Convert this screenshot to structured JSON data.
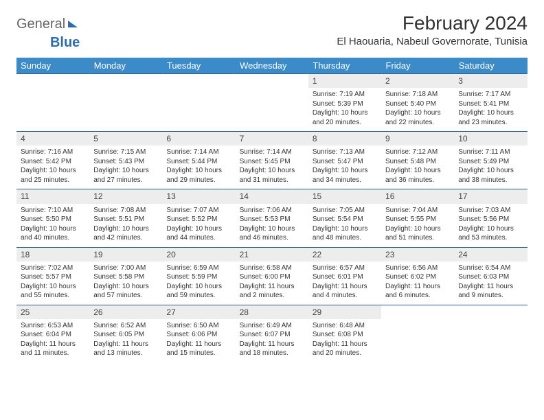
{
  "logo": {
    "part1": "General",
    "part2": "Blue"
  },
  "title": "February 2024",
  "location": "El Haouaria, Nabeul Governorate, Tunisia",
  "colors": {
    "header_bg": "#3b8bc9",
    "header_text": "#ffffff",
    "daynum_bg": "#ededed",
    "row_border": "#2a5a8a",
    "logo_blue": "#2a6db5"
  },
  "typography": {
    "title_fontsize": 28,
    "location_fontsize": 15,
    "header_fontsize": 13,
    "cell_fontsize": 10
  },
  "weekdays": [
    "Sunday",
    "Monday",
    "Tuesday",
    "Wednesday",
    "Thursday",
    "Friday",
    "Saturday"
  ],
  "weeks": [
    [
      {
        "n": "",
        "sr": "",
        "ss": "",
        "dl": ""
      },
      {
        "n": "",
        "sr": "",
        "ss": "",
        "dl": ""
      },
      {
        "n": "",
        "sr": "",
        "ss": "",
        "dl": ""
      },
      {
        "n": "",
        "sr": "",
        "ss": "",
        "dl": ""
      },
      {
        "n": "1",
        "sr": "Sunrise: 7:19 AM",
        "ss": "Sunset: 5:39 PM",
        "dl": "Daylight: 10 hours and 20 minutes."
      },
      {
        "n": "2",
        "sr": "Sunrise: 7:18 AM",
        "ss": "Sunset: 5:40 PM",
        "dl": "Daylight: 10 hours and 22 minutes."
      },
      {
        "n": "3",
        "sr": "Sunrise: 7:17 AM",
        "ss": "Sunset: 5:41 PM",
        "dl": "Daylight: 10 hours and 23 minutes."
      }
    ],
    [
      {
        "n": "4",
        "sr": "Sunrise: 7:16 AM",
        "ss": "Sunset: 5:42 PM",
        "dl": "Daylight: 10 hours and 25 minutes."
      },
      {
        "n": "5",
        "sr": "Sunrise: 7:15 AM",
        "ss": "Sunset: 5:43 PM",
        "dl": "Daylight: 10 hours and 27 minutes."
      },
      {
        "n": "6",
        "sr": "Sunrise: 7:14 AM",
        "ss": "Sunset: 5:44 PM",
        "dl": "Daylight: 10 hours and 29 minutes."
      },
      {
        "n": "7",
        "sr": "Sunrise: 7:14 AM",
        "ss": "Sunset: 5:45 PM",
        "dl": "Daylight: 10 hours and 31 minutes."
      },
      {
        "n": "8",
        "sr": "Sunrise: 7:13 AM",
        "ss": "Sunset: 5:47 PM",
        "dl": "Daylight: 10 hours and 34 minutes."
      },
      {
        "n": "9",
        "sr": "Sunrise: 7:12 AM",
        "ss": "Sunset: 5:48 PM",
        "dl": "Daylight: 10 hours and 36 minutes."
      },
      {
        "n": "10",
        "sr": "Sunrise: 7:11 AM",
        "ss": "Sunset: 5:49 PM",
        "dl": "Daylight: 10 hours and 38 minutes."
      }
    ],
    [
      {
        "n": "11",
        "sr": "Sunrise: 7:10 AM",
        "ss": "Sunset: 5:50 PM",
        "dl": "Daylight: 10 hours and 40 minutes."
      },
      {
        "n": "12",
        "sr": "Sunrise: 7:08 AM",
        "ss": "Sunset: 5:51 PM",
        "dl": "Daylight: 10 hours and 42 minutes."
      },
      {
        "n": "13",
        "sr": "Sunrise: 7:07 AM",
        "ss": "Sunset: 5:52 PM",
        "dl": "Daylight: 10 hours and 44 minutes."
      },
      {
        "n": "14",
        "sr": "Sunrise: 7:06 AM",
        "ss": "Sunset: 5:53 PM",
        "dl": "Daylight: 10 hours and 46 minutes."
      },
      {
        "n": "15",
        "sr": "Sunrise: 7:05 AM",
        "ss": "Sunset: 5:54 PM",
        "dl": "Daylight: 10 hours and 48 minutes."
      },
      {
        "n": "16",
        "sr": "Sunrise: 7:04 AM",
        "ss": "Sunset: 5:55 PM",
        "dl": "Daylight: 10 hours and 51 minutes."
      },
      {
        "n": "17",
        "sr": "Sunrise: 7:03 AM",
        "ss": "Sunset: 5:56 PM",
        "dl": "Daylight: 10 hours and 53 minutes."
      }
    ],
    [
      {
        "n": "18",
        "sr": "Sunrise: 7:02 AM",
        "ss": "Sunset: 5:57 PM",
        "dl": "Daylight: 10 hours and 55 minutes."
      },
      {
        "n": "19",
        "sr": "Sunrise: 7:00 AM",
        "ss": "Sunset: 5:58 PM",
        "dl": "Daylight: 10 hours and 57 minutes."
      },
      {
        "n": "20",
        "sr": "Sunrise: 6:59 AM",
        "ss": "Sunset: 5:59 PM",
        "dl": "Daylight: 10 hours and 59 minutes."
      },
      {
        "n": "21",
        "sr": "Sunrise: 6:58 AM",
        "ss": "Sunset: 6:00 PM",
        "dl": "Daylight: 11 hours and 2 minutes."
      },
      {
        "n": "22",
        "sr": "Sunrise: 6:57 AM",
        "ss": "Sunset: 6:01 PM",
        "dl": "Daylight: 11 hours and 4 minutes."
      },
      {
        "n": "23",
        "sr": "Sunrise: 6:56 AM",
        "ss": "Sunset: 6:02 PM",
        "dl": "Daylight: 11 hours and 6 minutes."
      },
      {
        "n": "24",
        "sr": "Sunrise: 6:54 AM",
        "ss": "Sunset: 6:03 PM",
        "dl": "Daylight: 11 hours and 9 minutes."
      }
    ],
    [
      {
        "n": "25",
        "sr": "Sunrise: 6:53 AM",
        "ss": "Sunset: 6:04 PM",
        "dl": "Daylight: 11 hours and 11 minutes."
      },
      {
        "n": "26",
        "sr": "Sunrise: 6:52 AM",
        "ss": "Sunset: 6:05 PM",
        "dl": "Daylight: 11 hours and 13 minutes."
      },
      {
        "n": "27",
        "sr": "Sunrise: 6:50 AM",
        "ss": "Sunset: 6:06 PM",
        "dl": "Daylight: 11 hours and 15 minutes."
      },
      {
        "n": "28",
        "sr": "Sunrise: 6:49 AM",
        "ss": "Sunset: 6:07 PM",
        "dl": "Daylight: 11 hours and 18 minutes."
      },
      {
        "n": "29",
        "sr": "Sunrise: 6:48 AM",
        "ss": "Sunset: 6:08 PM",
        "dl": "Daylight: 11 hours and 20 minutes."
      },
      {
        "n": "",
        "sr": "",
        "ss": "",
        "dl": ""
      },
      {
        "n": "",
        "sr": "",
        "ss": "",
        "dl": ""
      }
    ]
  ]
}
